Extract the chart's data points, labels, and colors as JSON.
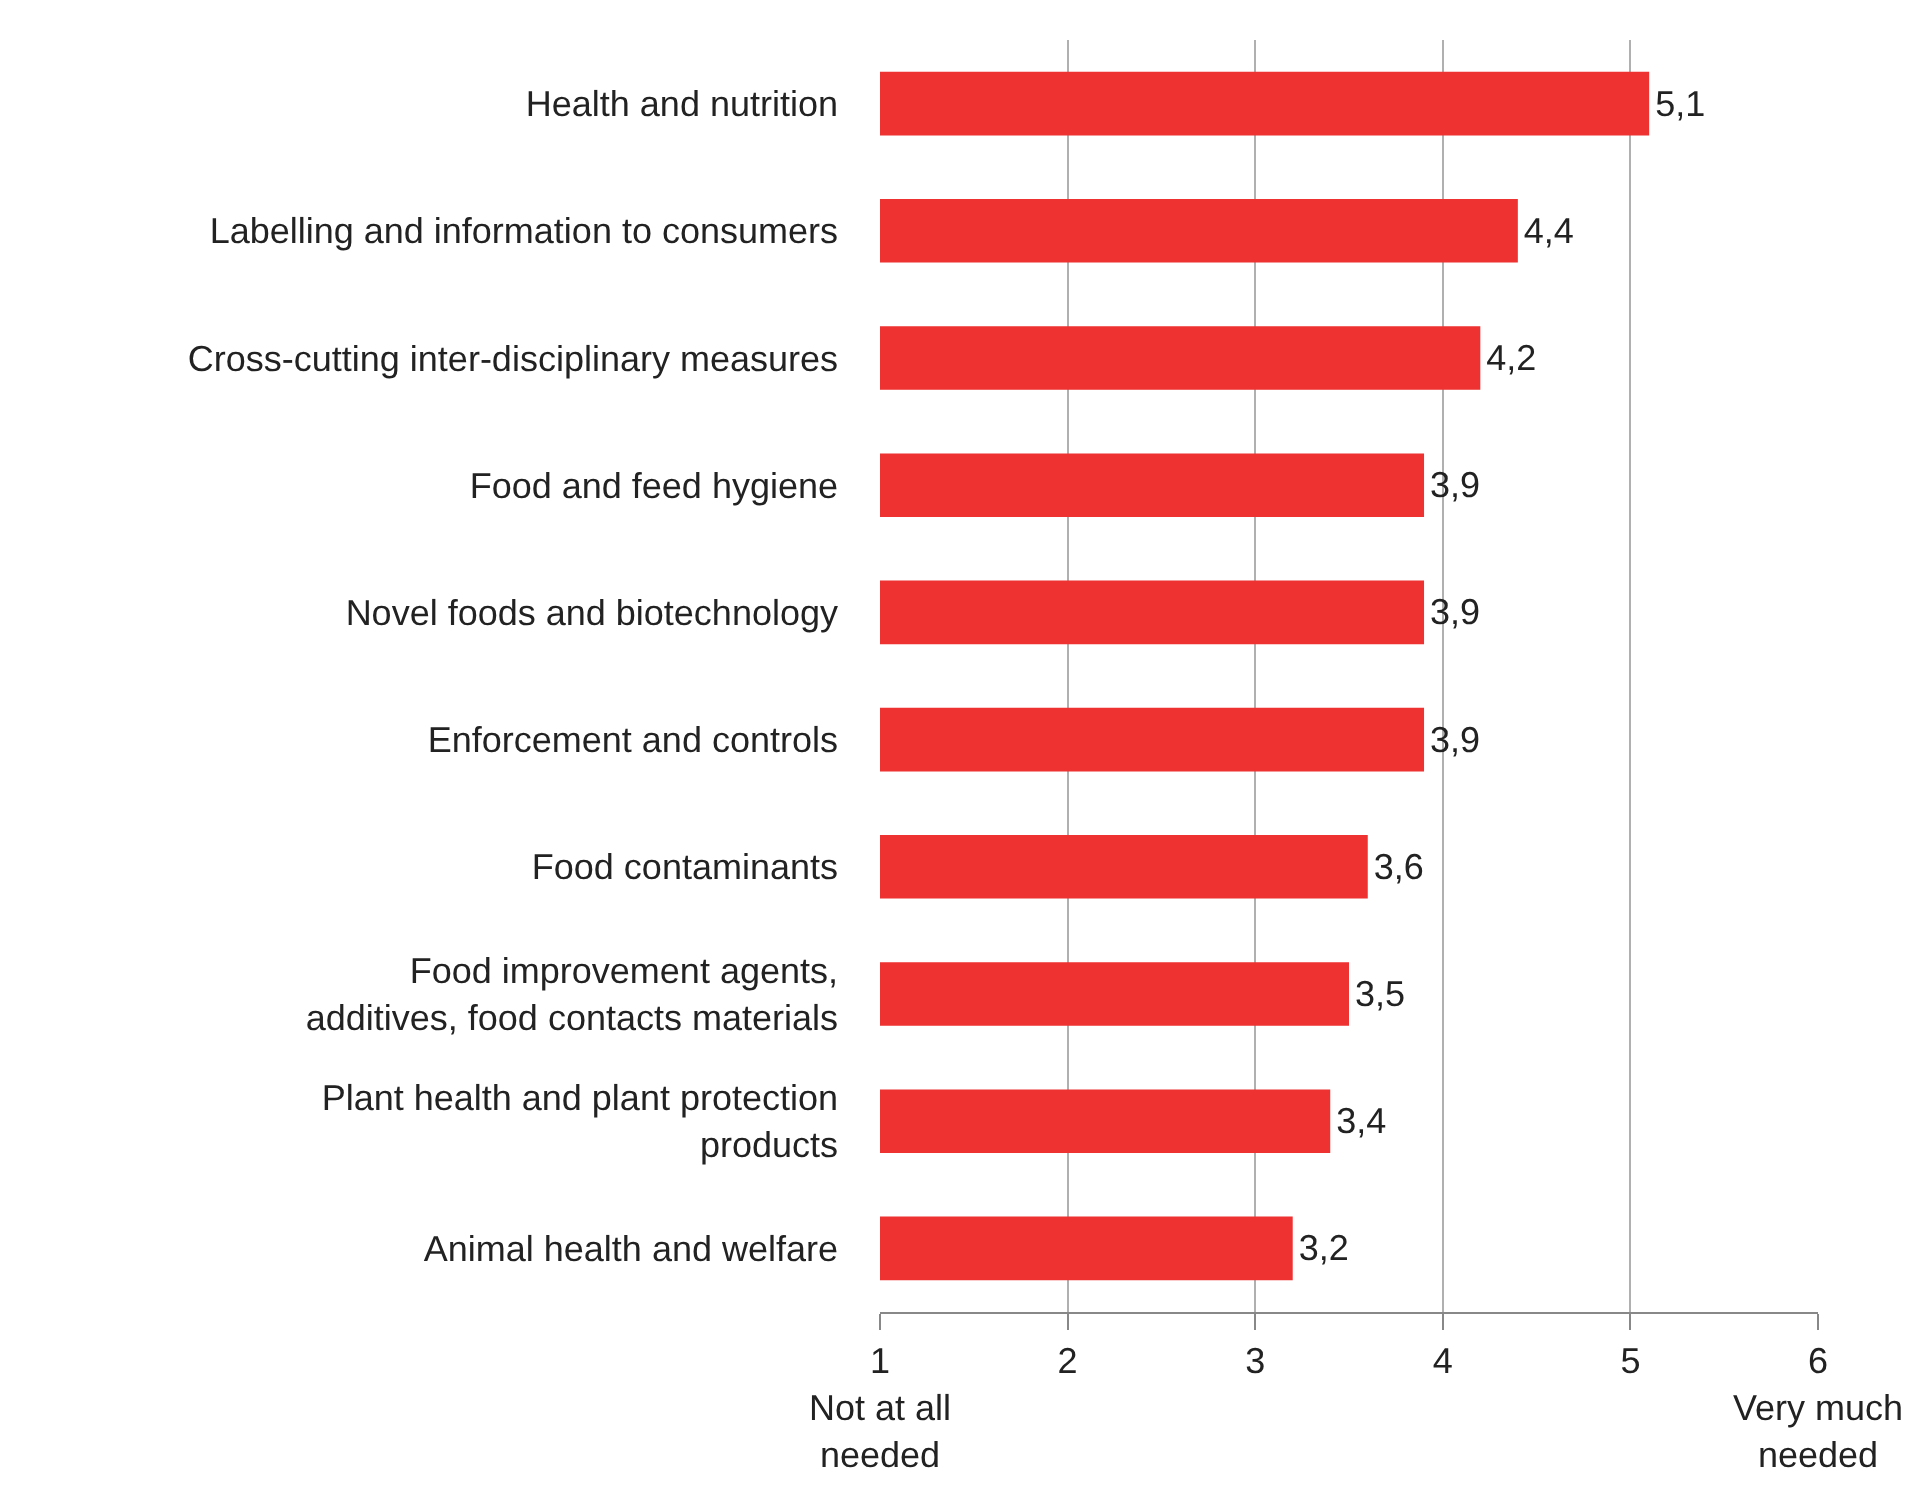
{
  "chart_data": {
    "type": "bar",
    "orientation": "horizontal",
    "categories": [
      "Health and nutrition",
      "Labelling and information to consumers",
      "Cross-cutting inter-disciplinary measures",
      "Food and feed hygiene",
      "Novel foods and biotechnology",
      "Enforcement and controls",
      "Food contaminants",
      "Food improvement agents,\nadditives, food contacts materials",
      "Plant health and plant protection\nproducts",
      "Animal health and welfare"
    ],
    "values": [
      5.1,
      4.4,
      4.2,
      3.9,
      3.9,
      3.9,
      3.6,
      3.5,
      3.4,
      3.2
    ],
    "value_labels": [
      "5,1",
      "4,4",
      "4,2",
      "3,9",
      "3,9",
      "3,9",
      "3,6",
      "3,5",
      "3,4",
      "3,2"
    ],
    "color": "#ee3131",
    "xlim": [
      1,
      6
    ],
    "xticks": [
      {
        "value": 1,
        "label": "1\nNot at all\nneeded"
      },
      2,
      3,
      4,
      5,
      {
        "value": 6,
        "label": "6\nVery much\nneeded"
      }
    ],
    "grid": "x",
    "legend": false
  }
}
